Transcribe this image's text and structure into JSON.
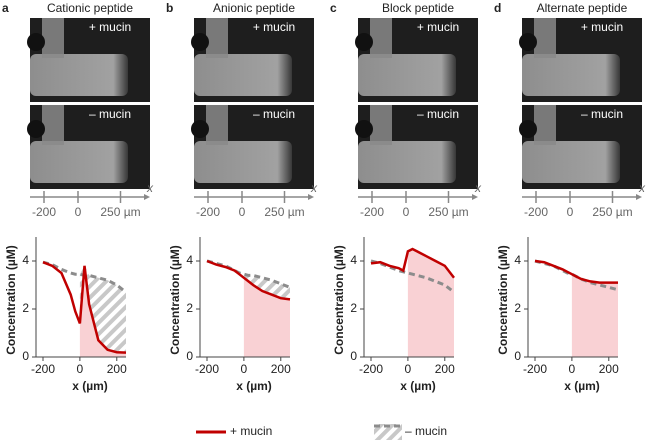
{
  "chart_data": [
    {
      "type": "line",
      "panel": "a",
      "title": "Cationic peptide",
      "image_labels": [
        "+ mucin",
        "– mucin"
      ],
      "scale_ticks": [
        -200,
        0,
        {
          "value": 250,
          "label": "250 µm"
        }
      ],
      "scale_axis_label": "x",
      "x_label": "x (µm)",
      "y_label": "Concentration (µM)",
      "x": [
        -200,
        -150,
        -100,
        -50,
        -25,
        0,
        25,
        50,
        100,
        150,
        200,
        250
      ],
      "series": [
        {
          "name": "+ mucin",
          "color": "#c00000",
          "values": [
            3.95,
            3.8,
            3.5,
            2.6,
            1.9,
            1.4,
            3.8,
            2.2,
            0.7,
            0.3,
            0.2,
            0.18
          ]
        },
        {
          "name": "– mucin",
          "color": "#8c8c8c",
          "values": [
            3.95,
            3.85,
            3.65,
            3.5,
            3.45,
            3.45,
            3.4,
            3.4,
            3.3,
            3.2,
            3.0,
            2.7
          ]
        }
      ],
      "xlim": [
        -200,
        250
      ],
      "xticks": [
        -200,
        0,
        200
      ],
      "ylim": [
        0,
        5
      ],
      "yticks": [
        0,
        2,
        4
      ]
    },
    {
      "type": "line",
      "panel": "b",
      "title": "Anionic peptide",
      "image_labels": [
        "+ mucin",
        "– mucin"
      ],
      "scale_ticks": [
        -200,
        0,
        {
          "value": 250,
          "label": "250 µm"
        }
      ],
      "scale_axis_label": "x",
      "x_label": "x (µm)",
      "y_label": "Concentration (µM)",
      "x": [
        -200,
        -150,
        -100,
        -50,
        -25,
        0,
        25,
        50,
        100,
        150,
        200,
        250
      ],
      "series": [
        {
          "name": "+ mucin",
          "color": "#c00000",
          "values": [
            4.0,
            3.85,
            3.75,
            3.6,
            3.45,
            3.3,
            3.15,
            3.0,
            2.75,
            2.6,
            2.45,
            2.4
          ]
        },
        {
          "name": "– mucin",
          "color": "#8c8c8c",
          "values": [
            4.0,
            3.9,
            3.8,
            3.6,
            3.5,
            3.45,
            3.4,
            3.4,
            3.3,
            3.2,
            3.05,
            2.9
          ]
        }
      ],
      "xlim": [
        -200,
        250
      ],
      "xticks": [
        -200,
        0,
        200
      ],
      "ylim": [
        0,
        5
      ],
      "yticks": [
        0,
        2,
        4
      ]
    },
    {
      "type": "line",
      "panel": "c",
      "title": "Block peptide",
      "image_labels": [
        "+ mucin",
        "– mucin"
      ],
      "scale_ticks": [
        -200,
        0,
        {
          "value": 250,
          "label": "250 µm"
        }
      ],
      "scale_axis_label": "x",
      "x_label": "x (µm)",
      "y_label": "Concentration (µM)",
      "x": [
        -200,
        -150,
        -100,
        -50,
        -25,
        0,
        25,
        50,
        100,
        150,
        200,
        250
      ],
      "series": [
        {
          "name": "+ mucin",
          "color": "#c00000",
          "values": [
            3.9,
            3.95,
            3.8,
            3.7,
            3.6,
            4.4,
            4.5,
            4.4,
            4.2,
            4.0,
            3.8,
            3.3
          ]
        },
        {
          "name": "– mucin",
          "color": "#8c8c8c",
          "values": [
            4.0,
            3.9,
            3.75,
            3.6,
            3.55,
            3.5,
            3.45,
            3.4,
            3.3,
            3.15,
            3.0,
            2.7
          ]
        }
      ],
      "xlim": [
        -200,
        250
      ],
      "xticks": [
        -200,
        0,
        200
      ],
      "ylim": [
        0,
        5
      ],
      "yticks": [
        0,
        2,
        4
      ]
    },
    {
      "type": "line",
      "panel": "d",
      "title": "Alternate peptide",
      "image_labels": [
        "+ mucin",
        "– mucin"
      ],
      "scale_ticks": [
        -200,
        0,
        {
          "value": 250,
          "label": "250 µm"
        }
      ],
      "scale_axis_label": "x",
      "x_label": "x (µm)",
      "y_label": "Concentration (µM)",
      "x": [
        -200,
        -150,
        -100,
        -50,
        -25,
        0,
        25,
        50,
        100,
        150,
        200,
        250
      ],
      "series": [
        {
          "name": "+ mucin",
          "color": "#c00000",
          "values": [
            4.0,
            3.95,
            3.8,
            3.65,
            3.55,
            3.45,
            3.35,
            3.25,
            3.15,
            3.1,
            3.1,
            3.1
          ]
        },
        {
          "name": "– mucin",
          "color": "#8c8c8c",
          "values": [
            4.0,
            3.9,
            3.8,
            3.6,
            3.5,
            3.45,
            3.35,
            3.25,
            3.1,
            3.0,
            2.9,
            2.8
          ]
        }
      ],
      "xlim": [
        -200,
        250
      ],
      "xticks": [
        -200,
        0,
        200
      ],
      "ylim": [
        0,
        5
      ],
      "yticks": [
        0,
        2,
        4
      ]
    }
  ]
}
